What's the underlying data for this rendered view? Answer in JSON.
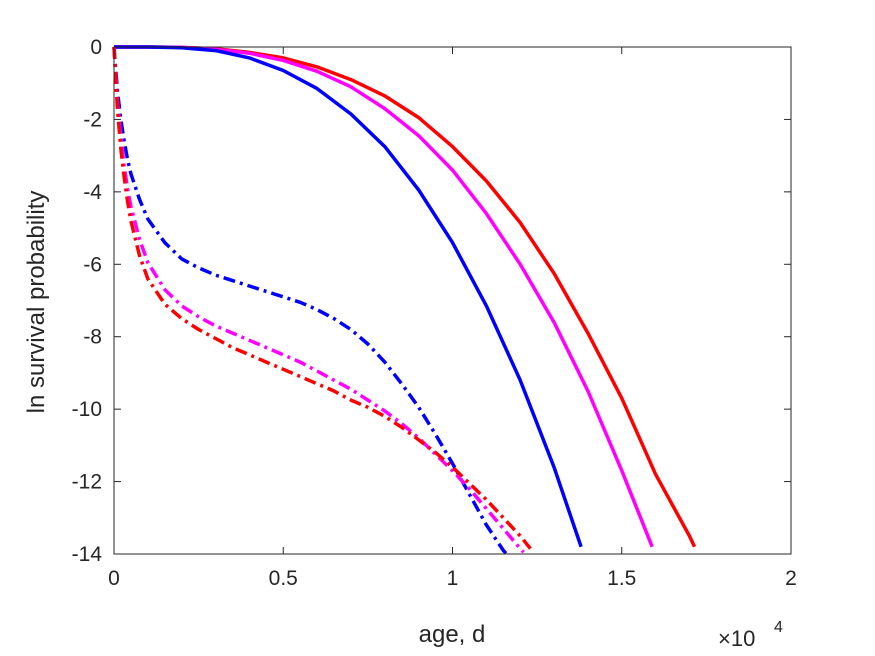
{
  "chart_data": {
    "type": "line",
    "xlabel": "age, d",
    "ylabel": "ln survival probability",
    "x_exponent_label": "×10",
    "x_exponent_power": "4",
    "xlim": [
      0,
      20000
    ],
    "ylim": [
      -14,
      0
    ],
    "xticks": [
      0,
      5000,
      10000,
      15000,
      20000
    ],
    "xtick_labels": [
      "0",
      "0.5",
      "1",
      "1.5",
      "2"
    ],
    "yticks": [
      0,
      -2,
      -4,
      -6,
      -8,
      -10,
      -12,
      -14
    ],
    "ytick_labels": [
      "0",
      "-2",
      "-4",
      "-6",
      "-8",
      "-10",
      "-12",
      "-14"
    ],
    "grid": false,
    "series": [
      {
        "color": "#ff0000",
        "style": "solid",
        "x": [
          0,
          1000,
          2000,
          3000,
          4000,
          5000,
          6000,
          7000,
          8000,
          9000,
          10000,
          11000,
          12000,
          13000,
          14000,
          15000,
          16000,
          17000,
          17150
        ],
        "y": [
          0,
          0,
          -0.01,
          -0.05,
          -0.15,
          -0.3,
          -0.55,
          -0.9,
          -1.35,
          -1.95,
          -2.75,
          -3.7,
          -4.85,
          -6.25,
          -7.9,
          -9.7,
          -11.8,
          -13.5,
          -13.8
        ]
      },
      {
        "color": "#ff00ff",
        "style": "solid",
        "x": [
          0,
          1000,
          2000,
          3000,
          4000,
          5000,
          6000,
          7000,
          8000,
          9000,
          10000,
          11000,
          12000,
          13000,
          14000,
          15000,
          15900
        ],
        "y": [
          0,
          0,
          -0.01,
          -0.06,
          -0.17,
          -0.37,
          -0.67,
          -1.1,
          -1.7,
          -2.45,
          -3.4,
          -4.6,
          -6.0,
          -7.6,
          -9.5,
          -11.7,
          -13.8
        ]
      },
      {
        "color": "#0000ff",
        "style": "solid",
        "x": [
          0,
          1000,
          2000,
          3000,
          4000,
          5000,
          6000,
          7000,
          8000,
          9000,
          10000,
          11000,
          12000,
          13000,
          13800
        ],
        "y": [
          0,
          0,
          -0.02,
          -0.1,
          -0.3,
          -0.65,
          -1.15,
          -1.85,
          -2.75,
          -3.95,
          -5.4,
          -7.15,
          -9.2,
          -11.6,
          -13.8
        ]
      },
      {
        "color": "#0000ff",
        "style": "dashdot",
        "x": [
          0,
          100,
          200,
          300,
          400,
          500,
          750,
          1000,
          1500,
          2000,
          2500,
          3000,
          3500,
          4000,
          4500,
          5000,
          5500,
          6000,
          6500,
          7000,
          7500,
          8000,
          8500,
          9000,
          9500,
          10000,
          10500,
          11000,
          11500,
          11600
        ],
        "y": [
          0,
          -1.2,
          -2.0,
          -2.6,
          -3.1,
          -3.5,
          -4.2,
          -4.75,
          -5.4,
          -5.85,
          -6.1,
          -6.3,
          -6.45,
          -6.6,
          -6.75,
          -6.9,
          -7.05,
          -7.25,
          -7.5,
          -7.8,
          -8.2,
          -8.7,
          -9.3,
          -9.95,
          -10.7,
          -11.5,
          -12.35,
          -13.2,
          -13.9,
          -14
        ]
      },
      {
        "color": "#ff00ff",
        "style": "dashdot",
        "x": [
          0,
          100,
          200,
          300,
          400,
          500,
          750,
          1000,
          1500,
          2000,
          2500,
          3000,
          3500,
          4000,
          4500,
          5000,
          5500,
          6000,
          6500,
          7000,
          7500,
          8000,
          8500,
          9000,
          9500,
          10000,
          10500,
          11000,
          11500,
          12000,
          12100
        ],
        "y": [
          0,
          -1.5,
          -2.5,
          -3.3,
          -3.9,
          -4.4,
          -5.3,
          -5.95,
          -6.7,
          -7.15,
          -7.45,
          -7.7,
          -7.9,
          -8.1,
          -8.3,
          -8.5,
          -8.7,
          -8.95,
          -9.2,
          -9.45,
          -9.75,
          -10.05,
          -10.4,
          -10.8,
          -11.25,
          -11.7,
          -12.2,
          -12.75,
          -13.3,
          -13.85,
          -13.95
        ]
      },
      {
        "color": "#ff0000",
        "style": "dashdot",
        "x": [
          0,
          100,
          200,
          300,
          400,
          500,
          750,
          1000,
          1500,
          2000,
          2500,
          3000,
          3500,
          4000,
          4500,
          5000,
          5500,
          6000,
          6500,
          7000,
          7500,
          8000,
          8500,
          9000,
          9500,
          10000,
          10500,
          11000,
          11500,
          12000,
          12300
        ],
        "y": [
          0,
          -1.7,
          -2.8,
          -3.6,
          -4.25,
          -4.8,
          -5.75,
          -6.4,
          -7.1,
          -7.5,
          -7.8,
          -8.05,
          -8.3,
          -8.5,
          -8.7,
          -8.9,
          -9.1,
          -9.3,
          -9.5,
          -9.75,
          -9.95,
          -10.2,
          -10.5,
          -10.85,
          -11.2,
          -11.6,
          -12.05,
          -12.5,
          -13.0,
          -13.5,
          -13.85
        ]
      }
    ]
  }
}
